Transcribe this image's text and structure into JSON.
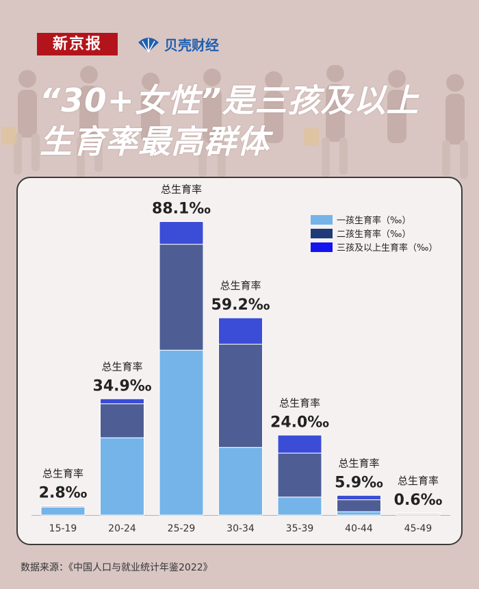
{
  "header": {
    "logo_primary": "新京报",
    "logo_secondary": "贝壳财经",
    "title_line1": "“30+女性”是三孩及以上",
    "title_line2": "生育率最高群体"
  },
  "colors": {
    "background": "#d9c6c3",
    "card": "#f5f1f0",
    "first_child": "#74b4e9",
    "second_child": "#4e5e95",
    "third_plus": "#3b4dd6",
    "legend_second": "#1f3a78",
    "legend_third": "#1414ee"
  },
  "chart_data": {
    "type": "bar",
    "stacked": true,
    "categories": [
      "15-19",
      "20-24",
      "25-29",
      "30-34",
      "35-39",
      "40-44",
      "45-49"
    ],
    "series": [
      {
        "name": "一孩生育率（‰）",
        "values": [
          2.4,
          23.2,
          49.5,
          20.3,
          5.4,
          1.0,
          0.2
        ]
      },
      {
        "name": "二孩生育率（‰）",
        "values": [
          0.3,
          10.2,
          31.8,
          31.0,
          13.2,
          3.6,
          0.3
        ]
      },
      {
        "name": "三孩及以上生育率（‰）",
        "values": [
          0.1,
          1.5,
          6.8,
          7.9,
          5.4,
          1.3,
          0.1
        ]
      }
    ],
    "totals": [
      2.8,
      34.9,
      88.1,
      59.2,
      24.0,
      5.9,
      0.6
    ],
    "total_label": "总生育率",
    "total_suffix": "‰",
    "ylim": [
      0,
      95
    ],
    "grid": false,
    "legend_position": "top-right"
  },
  "footer": {
    "source": "数据来源：《中国人口与就业统计年鉴2022》"
  }
}
